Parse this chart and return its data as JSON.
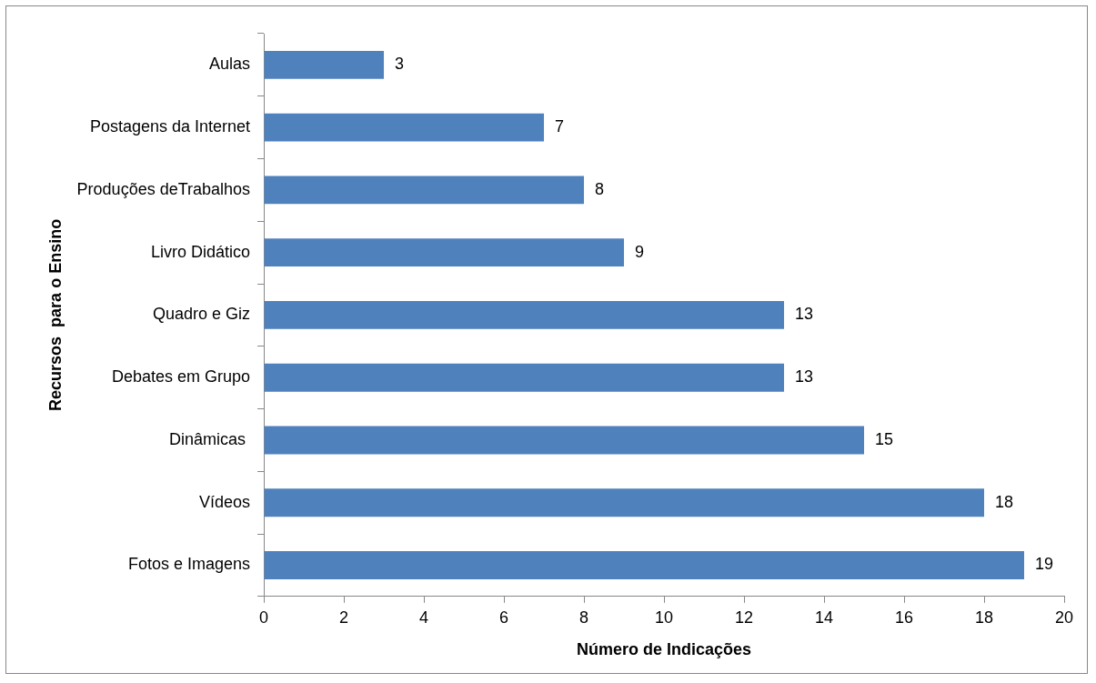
{
  "chart_data": {
    "type": "bar",
    "orientation": "horizontal",
    "xlabel": "Número de Indicações",
    "ylabel": "Recursos  para o Ensino",
    "categories": [
      "Aulas",
      "Postagens da Internet",
      "Produções deTrabalhos",
      "Livro Didático",
      "Quadro e Giz",
      "Debates em Grupo",
      "Dinâmicas ",
      "Vídeos",
      "Fotos e Imagens"
    ],
    "values": [
      3,
      7,
      8,
      9,
      13,
      13,
      15,
      18,
      19
    ],
    "color": "#4f81bd",
    "xlim": [
      0,
      20
    ],
    "xticks": [
      0,
      2,
      4,
      6,
      8,
      10,
      12,
      14,
      16,
      18,
      20
    ],
    "grid": false,
    "legend": false,
    "data_labels": true
  }
}
